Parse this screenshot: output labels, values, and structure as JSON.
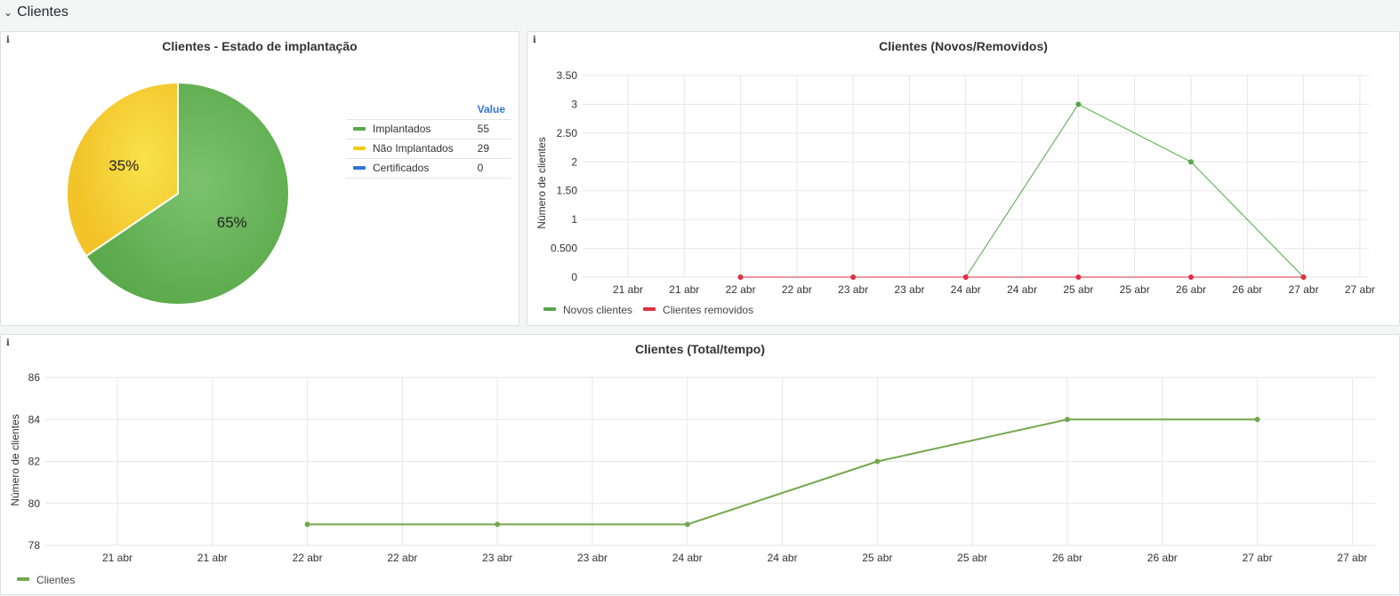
{
  "row": {
    "title": "Clientes"
  },
  "panels": {
    "pie": {
      "title": "Clientes - Estado de implantação",
      "legend_header": "Value",
      "legend": [
        {
          "label": "Implantados",
          "value": "55",
          "color": "#56a64b"
        },
        {
          "label": "Não Implantados",
          "value": "29",
          "color": "#f2cc0c"
        },
        {
          "label": "Certificados",
          "value": "0",
          "color": "#3274d9"
        }
      ]
    },
    "novos": {
      "title": "Clientes (Novos/Removidos)",
      "legend": [
        {
          "label": "Novos clientes",
          "color": "#56a64b"
        },
        {
          "label": "Clientes removidos",
          "color": "#e02f44"
        }
      ]
    },
    "total": {
      "title": "Clientes (Total/tempo)",
      "legend": [
        {
          "label": "Clientes",
          "color": "#73a84e"
        }
      ]
    }
  },
  "chart_data": [
    {
      "type": "pie",
      "title": "Clientes - Estado de implantação",
      "slices": [
        {
          "name": "Implantados",
          "value": 55,
          "label": "65%",
          "color": "#6cb85c"
        },
        {
          "name": "Não Implantados",
          "value": 29,
          "label": "35%",
          "color": "#f4cd2e"
        },
        {
          "name": "Certificados",
          "value": 0,
          "label": "",
          "color": "#3274d9"
        }
      ]
    },
    {
      "type": "line",
      "title": "Clientes (Novos/Removidos)",
      "ylabel": "Número de clientes",
      "ylim": [
        0,
        3.5
      ],
      "yticks": [
        {
          "v": 0,
          "label": "0"
        },
        {
          "v": 0.5,
          "label": "0.500"
        },
        {
          "v": 1,
          "label": "1"
        },
        {
          "v": 1.5,
          "label": "1.50"
        },
        {
          "v": 2,
          "label": "2"
        },
        {
          "v": 2.5,
          "label": "2.50"
        },
        {
          "v": 3,
          "label": "3"
        },
        {
          "v": 3.5,
          "label": "3.50"
        }
      ],
      "xticks": [
        "21 abr",
        "21 abr",
        "22 abr",
        "22 abr",
        "23 abr",
        "23 abr",
        "24 abr",
        "24 abr",
        "25 abr",
        "25 abr",
        "26 abr",
        "26 abr",
        "27 abr",
        "27 abr"
      ],
      "grid": true,
      "series": [
        {
          "name": "Novos clientes",
          "color": "#56a64b",
          "points": [
            [
              2,
              0
            ],
            [
              4,
              0
            ],
            [
              6,
              0
            ],
            [
              8,
              3
            ],
            [
              10,
              2
            ],
            [
              12,
              0
            ]
          ]
        },
        {
          "name": "Clientes removidos",
          "color": "#e02f44",
          "points": [
            [
              2,
              0
            ],
            [
              4,
              0
            ],
            [
              6,
              0
            ],
            [
              8,
              0
            ],
            [
              10,
              0
            ],
            [
              12,
              0
            ]
          ]
        }
      ]
    },
    {
      "type": "line",
      "title": "Clientes (Total/tempo)",
      "ylabel": "Número de clientes",
      "ylim": [
        78,
        86
      ],
      "yticks": [
        {
          "v": 78,
          "label": "78"
        },
        {
          "v": 80,
          "label": "80"
        },
        {
          "v": 82,
          "label": "82"
        },
        {
          "v": 84,
          "label": "84"
        },
        {
          "v": 86,
          "label": "86"
        }
      ],
      "xticks": [
        "21 abr",
        "21 abr",
        "22 abr",
        "22 abr",
        "23 abr",
        "23 abr",
        "24 abr",
        "24 abr",
        "25 abr",
        "25 abr",
        "26 abr",
        "26 abr",
        "27 abr",
        "27 abr"
      ],
      "grid": true,
      "series": [
        {
          "name": "Clientes",
          "color": "#73a84e",
          "points": [
            [
              2,
              79
            ],
            [
              4,
              79
            ],
            [
              6,
              79
            ],
            [
              8,
              82
            ],
            [
              10,
              84
            ],
            [
              12,
              84
            ]
          ]
        }
      ]
    }
  ]
}
